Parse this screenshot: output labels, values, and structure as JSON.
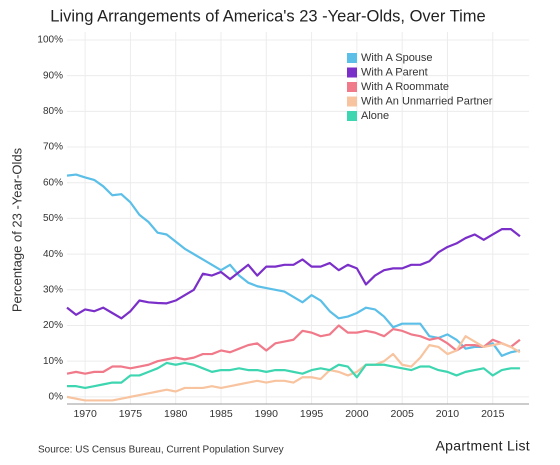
{
  "chart_data": {
    "type": "line",
    "title": "Living Arrangements of America's 23 -Year-Olds, Over Time",
    "y_label": "Percentage of 23 -Year-Olds",
    "source": "Source: US Census Bureau, Current Population Survey",
    "logo": "Apartment List",
    "x": [
      1968,
      1969,
      1970,
      1971,
      1972,
      1973,
      1974,
      1975,
      1976,
      1977,
      1978,
      1979,
      1980,
      1981,
      1982,
      1983,
      1984,
      1985,
      1986,
      1987,
      1988,
      1989,
      1990,
      1991,
      1992,
      1993,
      1994,
      1995,
      1996,
      1997,
      1998,
      1999,
      2000,
      2001,
      2002,
      2003,
      2004,
      2005,
      2006,
      2007,
      2008,
      2009,
      2010,
      2011,
      2012,
      2013,
      2014,
      2015,
      2016,
      2017,
      2018
    ],
    "xlim": [
      1968,
      2019
    ],
    "xticks": [
      1970,
      1975,
      1980,
      1985,
      1990,
      1995,
      2000,
      2005,
      2010,
      2015
    ],
    "ylim": [
      -2,
      100
    ],
    "yticks": [
      {
        "value": 0,
        "label": "0%"
      },
      {
        "value": 10,
        "label": "10%"
      },
      {
        "value": 20,
        "label": "20%"
      },
      {
        "value": 30,
        "label": "30%"
      },
      {
        "value": 40,
        "label": "40%"
      },
      {
        "value": 50,
        "label": "50%"
      },
      {
        "value": 60,
        "label": "60%"
      },
      {
        "value": 70,
        "label": "70%"
      },
      {
        "value": 80,
        "label": "80%"
      },
      {
        "value": 90,
        "label": "90%"
      },
      {
        "value": 100,
        "label": "100%"
      }
    ],
    "grid": true,
    "legend": "upper right",
    "series": [
      {
        "name": "With A Spouse",
        "color": "#5bbfe8",
        "values": [
          62,
          62.3,
          61.5,
          60.8,
          59,
          56.5,
          56.8,
          54.5,
          51,
          49,
          46,
          45.5,
          43.5,
          41.5,
          40,
          38.5,
          37,
          35.5,
          37,
          34,
          32,
          31,
          30.5,
          30,
          29.5,
          28,
          26.5,
          28.5,
          27,
          24,
          22,
          22.5,
          23.5,
          25,
          24.5,
          22.5,
          19.5,
          20.5,
          20.5,
          20.5,
          17,
          16.5,
          17.5,
          16,
          13.5,
          14,
          14,
          15,
          11.5,
          12.5,
          13
        ]
      },
      {
        "name": "With A Parent",
        "color": "#7b2fc9",
        "values": [
          25,
          23,
          24.5,
          24,
          25,
          23.5,
          22,
          24,
          27,
          26.5,
          26.3,
          26.2,
          27,
          28.5,
          30,
          34.5,
          34,
          35,
          33,
          35,
          37,
          34,
          36.5,
          36.5,
          37,
          37,
          38.5,
          36.5,
          36.5,
          37.5,
          35.5,
          37,
          36,
          31.5,
          34,
          35.5,
          36,
          36,
          37,
          37,
          38,
          40.5,
          42,
          43,
          44.5,
          45.5,
          44,
          45.5,
          47,
          47,
          45
        ]
      },
      {
        "name": "With A Roommate",
        "color": "#f07a8a",
        "values": [
          6.5,
          7,
          6.5,
          7,
          7,
          8.5,
          8.5,
          8,
          8.5,
          9,
          10,
          10.5,
          11,
          10.5,
          11,
          12,
          12,
          13,
          12.5,
          13.5,
          14.5,
          15,
          13,
          15,
          15.5,
          16,
          18.5,
          18,
          17,
          17.5,
          20,
          18,
          18,
          18.5,
          18,
          17,
          19,
          18.5,
          17.5,
          17,
          16,
          16.5,
          15,
          13,
          14.5,
          14.5,
          14,
          16,
          15,
          14,
          16
        ]
      },
      {
        "name": "With An Unmarried Partner",
        "color": "#f8c4a0",
        "values": [
          0,
          -0.5,
          -1,
          -1,
          -1,
          -1,
          -0.5,
          0,
          0.5,
          1,
          1.5,
          2,
          1.5,
          2.5,
          2.5,
          2.5,
          3,
          2.5,
          3,
          3.5,
          4,
          4.5,
          4,
          4.5,
          4.5,
          4,
          5.5,
          5.5,
          5,
          7.5,
          7,
          6,
          7,
          9,
          9,
          10,
          12,
          9,
          8.5,
          11,
          14.5,
          14,
          12,
          13,
          17,
          15.5,
          14,
          14.5,
          15,
          14,
          12.5
        ]
      },
      {
        "name": "Alone",
        "color": "#3dd6b0",
        "values": [
          3,
          3,
          2.5,
          3,
          3.5,
          4,
          4,
          6,
          6,
          7,
          8,
          9.5,
          9,
          9.5,
          9,
          8,
          7,
          7.5,
          7.5,
          8,
          7.5,
          7.5,
          7,
          7.5,
          7.5,
          7,
          6.5,
          7.5,
          8,
          7.5,
          9,
          8.5,
          5.5,
          9,
          9,
          9,
          8.5,
          8,
          7.5,
          8.5,
          8.5,
          7.5,
          7,
          6,
          7,
          7.5,
          8,
          6,
          7.5,
          8,
          8
        ]
      }
    ]
  }
}
